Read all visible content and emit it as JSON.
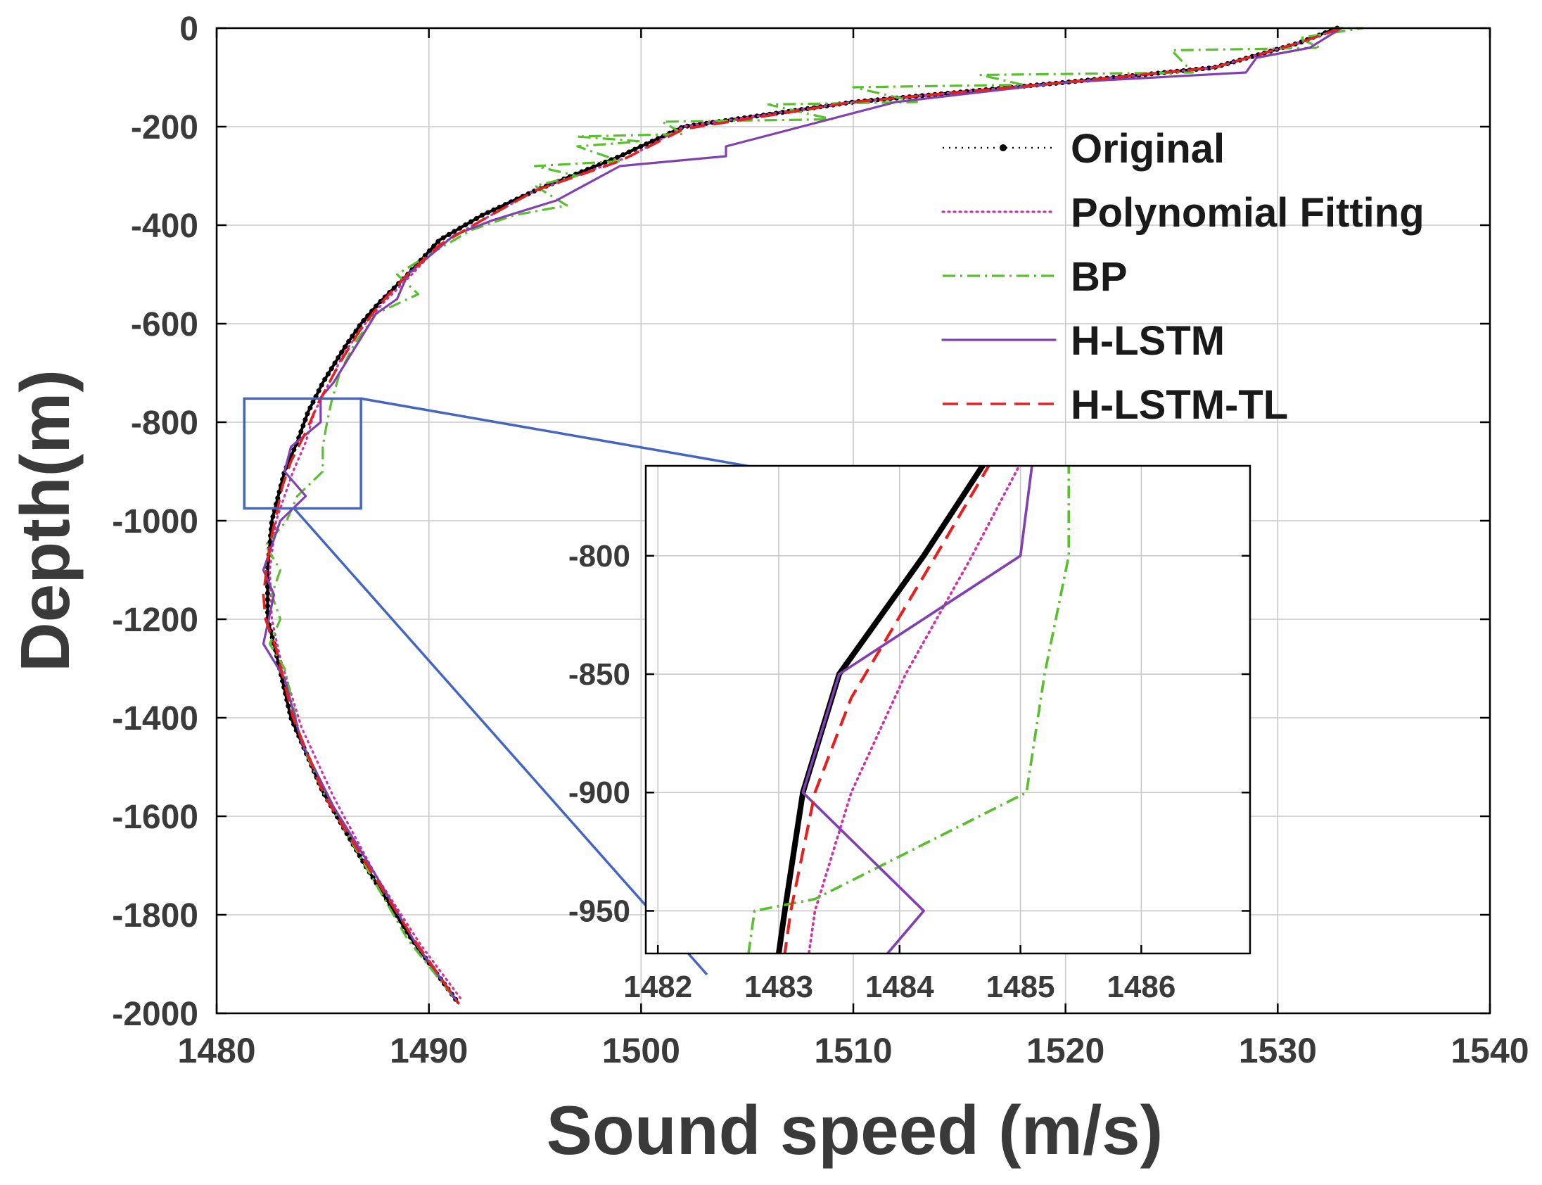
{
  "chart_data": [
    {
      "type": "line",
      "name": "main",
      "xlabel": "Sound speed (m/s)",
      "ylabel": "Depth(m)",
      "xlim": [
        1480,
        1540
      ],
      "ylim": [
        -2000,
        0
      ],
      "xticks": [
        1480,
        1490,
        1500,
        1510,
        1520,
        1530,
        1540
      ],
      "yticks": [
        0,
        -200,
        -400,
        -600,
        -800,
        -1000,
        -1200,
        -1400,
        -1600,
        -1800,
        -2000
      ],
      "grid": true,
      "legend_position": "top-right",
      "series": [
        {
          "name": "Original",
          "color": "#000000",
          "style": "dotted-marker",
          "points": [
            [
              1532.8,
              0
            ],
            [
              1531,
              -30
            ],
            [
              1527,
              -80
            ],
            [
              1520,
              -110
            ],
            [
              1510,
              -150
            ],
            [
              1502,
              -200
            ],
            [
              1499,
              -260
            ],
            [
              1495,
              -330
            ],
            [
              1492.5,
              -380
            ],
            [
              1490.5,
              -430
            ],
            [
              1489,
              -500
            ],
            [
              1487.6,
              -560
            ],
            [
              1486.8,
              -600
            ],
            [
              1486,
              -650
            ],
            [
              1485,
              -720
            ],
            [
              1484.3,
              -780
            ],
            [
              1483.8,
              -840
            ],
            [
              1483.2,
              -900
            ],
            [
              1482.9,
              -950
            ],
            [
              1482.6,
              -1000
            ],
            [
              1482.4,
              -1100
            ],
            [
              1482.4,
              -1200
            ],
            [
              1482.7,
              -1250
            ],
            [
              1483.5,
              -1400
            ],
            [
              1485,
              -1550
            ],
            [
              1487,
              -1700
            ],
            [
              1489.2,
              -1850
            ],
            [
              1491.4,
              -1980
            ]
          ]
        },
        {
          "name": "Polynomial Fitting",
          "color": "#cc33aa",
          "style": "dotted",
          "points": [
            [
              1533,
              0
            ],
            [
              1531,
              -30
            ],
            [
              1527,
              -80
            ],
            [
              1520,
              -110
            ],
            [
              1510,
              -150
            ],
            [
              1502,
              -200
            ],
            [
              1499.5,
              -260
            ],
            [
              1495,
              -330
            ],
            [
              1492.5,
              -390
            ],
            [
              1490.5,
              -440
            ],
            [
              1489.2,
              -500
            ],
            [
              1487.8,
              -560
            ],
            [
              1487,
              -600
            ],
            [
              1486,
              -660
            ],
            [
              1485.3,
              -720
            ],
            [
              1484.6,
              -780
            ],
            [
              1484.2,
              -840
            ],
            [
              1483.6,
              -900
            ],
            [
              1483.2,
              -950
            ],
            [
              1482.8,
              -1000
            ],
            [
              1482.5,
              -1100
            ],
            [
              1482.6,
              -1200
            ],
            [
              1483,
              -1280
            ],
            [
              1484,
              -1420
            ],
            [
              1485.5,
              -1560
            ],
            [
              1487.5,
              -1720
            ],
            [
              1489.6,
              -1860
            ],
            [
              1491.5,
              -1970
            ]
          ]
        },
        {
          "name": "BP",
          "color": "#5abf2e",
          "style": "dashdot",
          "points": [
            [
              1532.5,
              0
            ],
            [
              1534,
              0
            ],
            [
              1531,
              -20
            ],
            [
              1532,
              -40
            ],
            [
              1525,
              -45
            ],
            [
              1526,
              -90
            ],
            [
              1516,
              -95
            ],
            [
              1518,
              -115
            ],
            [
              1510,
              -120
            ],
            [
              1513,
              -150
            ],
            [
              1506,
              -155
            ],
            [
              1509,
              -185
            ],
            [
              1501,
              -190
            ],
            [
              1502,
              -215
            ],
            [
              1497,
              -220
            ],
            [
              1500,
              -230
            ],
            [
              1497,
              -240
            ],
            [
              1499,
              -270
            ],
            [
              1495,
              -280
            ],
            [
              1497,
              -300
            ],
            [
              1495,
              -320
            ],
            [
              1496.5,
              -360
            ],
            [
              1494,
              -380
            ],
            [
              1492,
              -410
            ],
            [
              1490,
              -460
            ],
            [
              1488.5,
              -500
            ],
            [
              1489.5,
              -540
            ],
            [
              1487.5,
              -580
            ],
            [
              1486.5,
              -640
            ],
            [
              1485.8,
              -700
            ],
            [
              1485.4,
              -760
            ],
            [
              1485.2,
              -800
            ],
            [
              1485,
              -850
            ],
            [
              1485,
              -900
            ],
            [
              1483.8,
              -950
            ],
            [
              1483.3,
              -1000
            ],
            [
              1482.3,
              -1050
            ],
            [
              1483,
              -1100
            ],
            [
              1482.6,
              -1150
            ],
            [
              1483,
              -1200
            ],
            [
              1482.5,
              -1250
            ],
            [
              1483.2,
              -1300
            ],
            [
              1484,
              -1450
            ],
            [
              1485,
              -1550
            ],
            [
              1487,
              -1700
            ],
            [
              1489,
              -1850
            ],
            [
              1491.4,
              -1980
            ]
          ]
        },
        {
          "name": "H-LSTM",
          "color": "#8040b0",
          "style": "solid",
          "points": [
            [
              1533,
              0
            ],
            [
              1531.5,
              -40
            ],
            [
              1529,
              -60
            ],
            [
              1528.5,
              -90
            ],
            [
              1520,
              -110
            ],
            [
              1512,
              -150
            ],
            [
              1504,
              -240
            ],
            [
              1504,
              -260
            ],
            [
              1499,
              -280
            ],
            [
              1496,
              -350
            ],
            [
              1493,
              -390
            ],
            [
              1491.2,
              -420
            ],
            [
              1489,
              -500
            ],
            [
              1488.5,
              -550
            ],
            [
              1487.5,
              -580
            ],
            [
              1486.5,
              -650
            ],
            [
              1485.5,
              -720
            ],
            [
              1484.9,
              -750
            ],
            [
              1484.9,
              -800
            ],
            [
              1483.5,
              -850
            ],
            [
              1483.2,
              -900
            ],
            [
              1484.2,
              -950
            ],
            [
              1483,
              -1000
            ],
            [
              1482.2,
              -1100
            ],
            [
              1482.7,
              -1150
            ],
            [
              1482.2,
              -1250
            ],
            [
              1483.2,
              -1320
            ],
            [
              1484,
              -1450
            ],
            [
              1485.5,
              -1580
            ],
            [
              1487.5,
              -1720
            ],
            [
              1489.4,
              -1860
            ],
            [
              1491.4,
              -1980
            ]
          ]
        },
        {
          "name": "H-LSTM-TL",
          "color": "#e52020",
          "style": "dashed",
          "points": [
            [
              1533,
              0
            ],
            [
              1531,
              -30
            ],
            [
              1527,
              -80
            ],
            [
              1520,
              -110
            ],
            [
              1510,
              -150
            ],
            [
              1502,
              -205
            ],
            [
              1499,
              -270
            ],
            [
              1495,
              -330
            ],
            [
              1492.5,
              -390
            ],
            [
              1490.5,
              -440
            ],
            [
              1489,
              -500
            ],
            [
              1487.7,
              -560
            ],
            [
              1486.8,
              -610
            ],
            [
              1485.8,
              -680
            ],
            [
              1484.8,
              -760
            ],
            [
              1484.2,
              -820
            ],
            [
              1483.5,
              -880
            ],
            [
              1483.1,
              -930
            ],
            [
              1482.8,
              -990
            ],
            [
              1482.5,
              -1050
            ],
            [
              1482.2,
              -1150
            ],
            [
              1482.3,
              -1200
            ],
            [
              1482.8,
              -1260
            ],
            [
              1483.6,
              -1400
            ],
            [
              1485.1,
              -1560
            ],
            [
              1487.1,
              -1700
            ],
            [
              1489.3,
              -1850
            ],
            [
              1491.4,
              -1980
            ]
          ]
        }
      ]
    },
    {
      "type": "line",
      "name": "inset",
      "xlim": [
        1481.9,
        1486.9
      ],
      "ylim": [
        -968,
        -762
      ],
      "xticks": [
        1482,
        1483,
        1484,
        1485,
        1486
      ],
      "yticks": [
        -800,
        -850,
        -900,
        -950
      ],
      "grid": true,
      "series": [
        {
          "name": "Original",
          "color": "#000000",
          "style": "solid-bold",
          "points": [
            [
              1484.7,
              -761
            ],
            [
              1484.2,
              -800
            ],
            [
              1483.5,
              -850
            ],
            [
              1483.2,
              -900
            ],
            [
              1483.05,
              -950
            ],
            [
              1483,
              -968
            ]
          ]
        },
        {
          "name": "Polynomial Fitting",
          "color": "#cc33aa",
          "style": "dotted",
          "points": [
            [
              1485,
              -761
            ],
            [
              1484.6,
              -800
            ],
            [
              1484.05,
              -850
            ],
            [
              1483.6,
              -900
            ],
            [
              1483.3,
              -950
            ],
            [
              1483.25,
              -968
            ]
          ]
        },
        {
          "name": "BP",
          "color": "#5abf2e",
          "style": "dashdot",
          "points": [
            [
              1485.4,
              -760
            ],
            [
              1485.4,
              -800
            ],
            [
              1485.2,
              -850
            ],
            [
              1485.05,
              -900
            ],
            [
              1483.3,
              -945
            ],
            [
              1482.8,
              -950
            ],
            [
              1482.75,
              -968
            ]
          ]
        },
        {
          "name": "H-LSTM",
          "color": "#8040b0",
          "style": "solid",
          "points": [
            [
              1485.1,
              -760
            ],
            [
              1485,
              -800
            ],
            [
              1483.5,
              -850
            ],
            [
              1483.2,
              -900
            ],
            [
              1484.2,
              -950
            ],
            [
              1483.9,
              -968
            ]
          ]
        },
        {
          "name": "H-LSTM-TL",
          "color": "#e52020",
          "style": "dashed",
          "points": [
            [
              1484.75,
              -761
            ],
            [
              1484.3,
              -800
            ],
            [
              1483.6,
              -860
            ],
            [
              1483.3,
              -900
            ],
            [
              1483.1,
              -950
            ],
            [
              1483.05,
              -968
            ]
          ]
        }
      ]
    }
  ],
  "zoom_region": {
    "x_range": [
      1481.3,
      1486.8
    ],
    "y_range": [
      -975,
      -752
    ]
  },
  "legend": {
    "items": [
      {
        "label": "Original",
        "color": "#000000",
        "style": "dotted-marker"
      },
      {
        "label": "Polynomial Fitting",
        "color": "#cc33aa",
        "style": "dotted"
      },
      {
        "label": "BP",
        "color": "#5abf2e",
        "style": "dashdot"
      },
      {
        "label": "H-LSTM",
        "color": "#8040b0",
        "style": "solid"
      },
      {
        "label": "H-LSTM-TL",
        "color": "#e52020",
        "style": "dashed"
      }
    ]
  },
  "colors": {
    "zoom_box": "#4466c0",
    "axis_text": "#3a3a3a"
  }
}
